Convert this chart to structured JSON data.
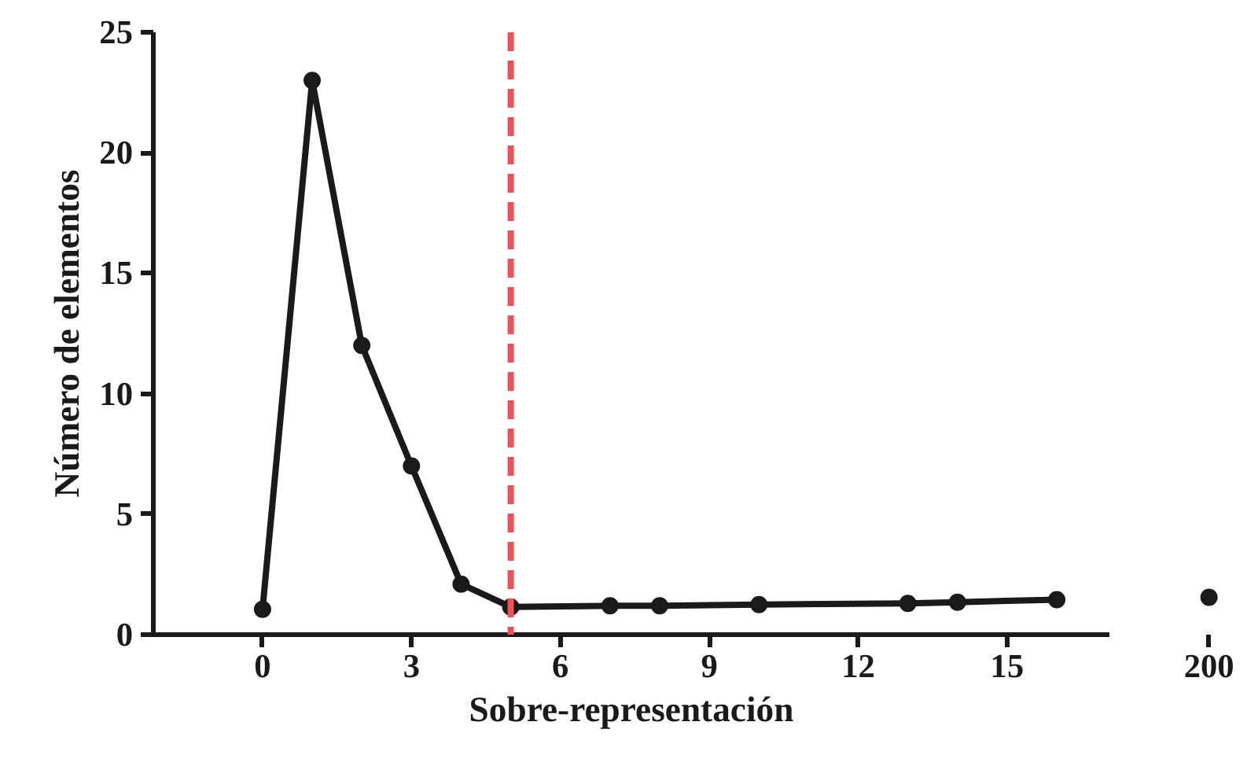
{
  "chart_data": [
    {
      "type": "line",
      "xlabel": "Sobre-representación",
      "ylabel": "Número de elementos",
      "x": [
        0,
        1,
        2,
        3,
        4,
        5,
        7,
        8,
        10,
        13,
        14,
        16
      ],
      "values": [
        1.05,
        23,
        12,
        7,
        2.1,
        1.15,
        1.2,
        1.2,
        1.25,
        1.3,
        1.35,
        1.45
      ],
      "color": "#1a1a1a",
      "marker": "circle",
      "line_style": "solid",
      "xlim": [
        -2.2,
        17.06
      ],
      "xticks": [
        0,
        3,
        6,
        9,
        12,
        15
      ],
      "ylim": [
        0,
        25
      ],
      "yticks": [
        0,
        5,
        10,
        15,
        20,
        25
      ],
      "ref_lines": [
        {
          "axis": "x",
          "value": 5,
          "color": "#f0505a",
          "line_style": "dashed"
        }
      ]
    },
    {
      "type": "line",
      "categories": [
        "200"
      ],
      "values": [
        1.55
      ],
      "color": "#1a1a1a",
      "marker": "circle",
      "line_style": "solid",
      "ylim": [
        0,
        25
      ],
      "tick_labels": "x"
    }
  ]
}
